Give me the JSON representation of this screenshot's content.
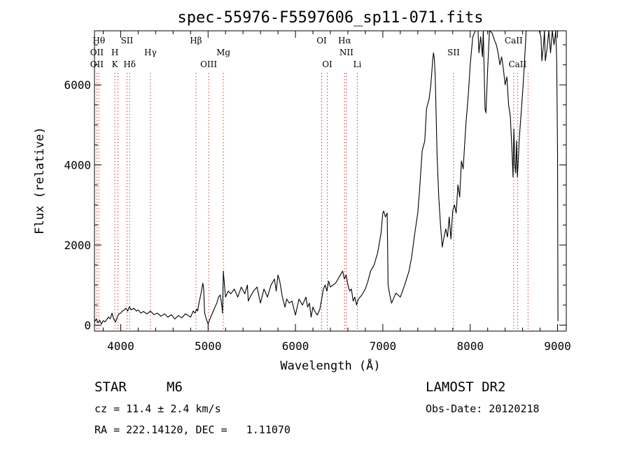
{
  "chart_data": {
    "type": "line",
    "title": "spec-55976-F5597606_sp11-071.fits",
    "xlabel": "Wavelength (Å)",
    "ylabel": "Flux (relative)",
    "xlim": [
      3700,
      9100
    ],
    "ylim": [
      -150,
      7350
    ],
    "x_ticks": [
      4000,
      5000,
      6000,
      7000,
      8000,
      9000
    ],
    "x_tick_labels": [
      "4000",
      "5000",
      "6000",
      "7000",
      "8000",
      "9000"
    ],
    "y_ticks": [
      0,
      2000,
      4000,
      6000
    ],
    "y_tick_labels": [
      "0",
      "2000",
      "4000",
      "6000"
    ],
    "line_color": "#000000",
    "marker_color": "#e03030",
    "grid": false,
    "series": [
      {
        "x": [
          3700,
          3720,
          3740,
          3760,
          3780,
          3800,
          3820,
          3840,
          3860,
          3880,
          3900,
          3920,
          3940,
          3960,
          3980,
          4000,
          4020,
          4040,
          4060,
          4080,
          4100,
          4120,
          4150,
          4180,
          4200,
          4230,
          4260,
          4300,
          4340,
          4380,
          4420,
          4460,
          4500,
          4540,
          4580,
          4620,
          4660,
          4700,
          4740,
          4780,
          4800,
          4830,
          4850,
          4870,
          4880,
          4900,
          4920,
          4940,
          4950,
          4960,
          4980,
          5000,
          5030,
          5060,
          5080,
          5100,
          5120,
          5140,
          5160,
          5165,
          5175,
          5180,
          5200,
          5230,
          5260,
          5300,
          5340,
          5380,
          5420,
          5450,
          5460,
          5480,
          5520,
          5560,
          5600,
          5640,
          5680,
          5720,
          5760,
          5780,
          5800,
          5820,
          5850,
          5880,
          5900,
          5930,
          5960,
          6000,
          6040,
          6080,
          6120,
          6140,
          6160,
          6180,
          6200,
          6220,
          6250,
          6280,
          6300,
          6320,
          6340,
          6360,
          6380,
          6400,
          6430,
          6460,
          6500,
          6540,
          6560,
          6580,
          6600,
          6620,
          6640,
          6660,
          6680,
          6700,
          6720,
          6760,
          6800,
          6830,
          6860,
          6900,
          6940,
          6980,
          6990,
          7000,
          7010,
          7030,
          7050,
          7060,
          7080,
          7100,
          7150,
          7200,
          7250,
          7300,
          7330,
          7360,
          7400,
          7420,
          7450,
          7480,
          7500,
          7530,
          7550,
          7560,
          7570,
          7580,
          7590,
          7600,
          7620,
          7640,
          7660,
          7680,
          7700,
          7720,
          7740,
          7760,
          7780,
          7800,
          7820,
          7840,
          7860,
          7880,
          7900,
          7920,
          7950,
          7980,
          8000,
          8030,
          8060,
          8090,
          8100,
          8120,
          8140,
          8150,
          8170,
          8180,
          8200,
          8220,
          8250,
          8280,
          8300,
          8320,
          8340,
          8360,
          8380,
          8400,
          8420,
          8440,
          8460,
          8480,
          8490,
          8500,
          8510,
          8520,
          8530,
          8540,
          8550,
          8560,
          8580,
          8600,
          8620,
          8640,
          8660,
          8680,
          8700,
          8720,
          8740,
          8760,
          8790,
          8810,
          8820,
          8840,
          8850,
          8860,
          8880,
          8900,
          8920,
          8940,
          8960,
          8980,
          8990,
          9000,
          9005
        ],
        "y": [
          80,
          150,
          60,
          120,
          30,
          110,
          80,
          140,
          200,
          160,
          300,
          150,
          80,
          200,
          280,
          300,
          350,
          380,
          420,
          350,
          460,
          380,
          420,
          350,
          380,
          300,
          340,
          280,
          350,
          260,
          300,
          220,
          280,
          200,
          260,
          150,
          240,
          180,
          280,
          230,
          200,
          350,
          300,
          400,
          350,
          600,
          800,
          1050,
          900,
          300,
          150,
          30,
          200,
          350,
          450,
          550,
          700,
          750,
          450,
          300,
          1350,
          1200,
          700,
          850,
          780,
          900,
          700,
          950,
          780,
          1000,
          600,
          700,
          850,
          950,
          550,
          900,
          700,
          1000,
          1150,
          850,
          1250,
          1100,
          700,
          450,
          650,
          550,
          600,
          250,
          650,
          500,
          700,
          450,
          550,
          200,
          450,
          350,
          250,
          400,
          650,
          900,
          1000,
          850,
          1100,
          950,
          1000,
          1050,
          1200,
          1350,
          1150,
          1250,
          1000,
          850,
          900,
          600,
          700,
          500,
          650,
          750,
          900,
          1100,
          1350,
          1500,
          1800,
          2300,
          2550,
          2800,
          2850,
          2700,
          2800,
          1000,
          750,
          550,
          800,
          700,
          1000,
          1350,
          1700,
          2200,
          2800,
          3350,
          4350,
          4600,
          5400,
          5650,
          6000,
          6300,
          6600,
          6800,
          6650,
          6200,
          4300,
          3200,
          2500,
          1950,
          2200,
          2400,
          2200,
          2700,
          2150,
          2850,
          3000,
          2800,
          3500,
          3200,
          4100,
          3900,
          5000,
          5800,
          6500,
          7200,
          7350,
          7350,
          6800,
          7200,
          6700,
          7350,
          5400,
          5300,
          6400,
          7350,
          7300,
          7100,
          7000,
          6800,
          6500,
          6700,
          6400,
          6000,
          6200,
          5500,
          5200,
          4300,
          3700,
          4900,
          4000,
          3800,
          4600,
          3700,
          4100,
          4600,
          5200,
          5800,
          6500,
          7350,
          7350,
          7350,
          7350,
          7350,
          7350,
          7350,
          7350,
          7200,
          6600,
          7000,
          7350,
          6600,
          6900,
          7350,
          6800,
          7350,
          7000,
          7350,
          6600,
          4300,
          100
        ]
      }
    ],
    "line_markers": [
      {
        "wl": 3750,
        "labels": [
          "Hθ"
        ],
        "row": 1
      },
      {
        "wl": 3727,
        "labels": [
          "OII"
        ],
        "row": 2
      },
      {
        "wl": 3727,
        "labels": [
          "OII"
        ],
        "row": 3
      },
      {
        "wl": 3933,
        "labels": [
          "H"
        ],
        "row": 2
      },
      {
        "wl": 3933,
        "labels": [
          "K"
        ],
        "row": 3
      },
      {
        "wl": 3969,
        "labels": [],
        "row": 0
      },
      {
        "wl": 4072,
        "labels": [
          "SII"
        ],
        "row": 1
      },
      {
        "wl": 4102,
        "labels": [
          "Hδ"
        ],
        "row": 3
      },
      {
        "wl": 4340,
        "labels": [
          "Hγ"
        ],
        "row": 2
      },
      {
        "wl": 4861,
        "labels": [
          "Hβ"
        ],
        "row": 1
      },
      {
        "wl": 5007,
        "labels": [
          "OIII"
        ],
        "row": 3
      },
      {
        "wl": 5175,
        "labels": [
          "Mg"
        ],
        "row": 2
      },
      {
        "wl": 6300,
        "labels": [
          "OI"
        ],
        "row": 1
      },
      {
        "wl": 6364,
        "labels": [
          "OI"
        ],
        "row": 3
      },
      {
        "wl": 6563,
        "labels": [
          "Hα"
        ],
        "row": 1
      },
      {
        "wl": 6583,
        "labels": [
          "NII"
        ],
        "row": 2
      },
      {
        "wl": 6708,
        "labels": [
          "Li"
        ],
        "row": 3
      },
      {
        "wl": 7810,
        "labels": [
          "SII"
        ],
        "row": 2
      },
      {
        "wl": 8498,
        "labels": [
          "CaII"
        ],
        "row": 1
      },
      {
        "wl": 8542,
        "labels": [
          "CaII"
        ],
        "row": 3
      },
      {
        "wl": 8662,
        "labels": [],
        "row": 0
      }
    ]
  },
  "info": {
    "object_class": "STAR",
    "subclass": "M6",
    "survey": "LAMOST DR2",
    "cz": "cz = 11.4 ± 2.4 km/s",
    "obs_date": "Obs-Date: 20120218",
    "coords": "RA = 222.14120, DEC =   1.11070"
  }
}
